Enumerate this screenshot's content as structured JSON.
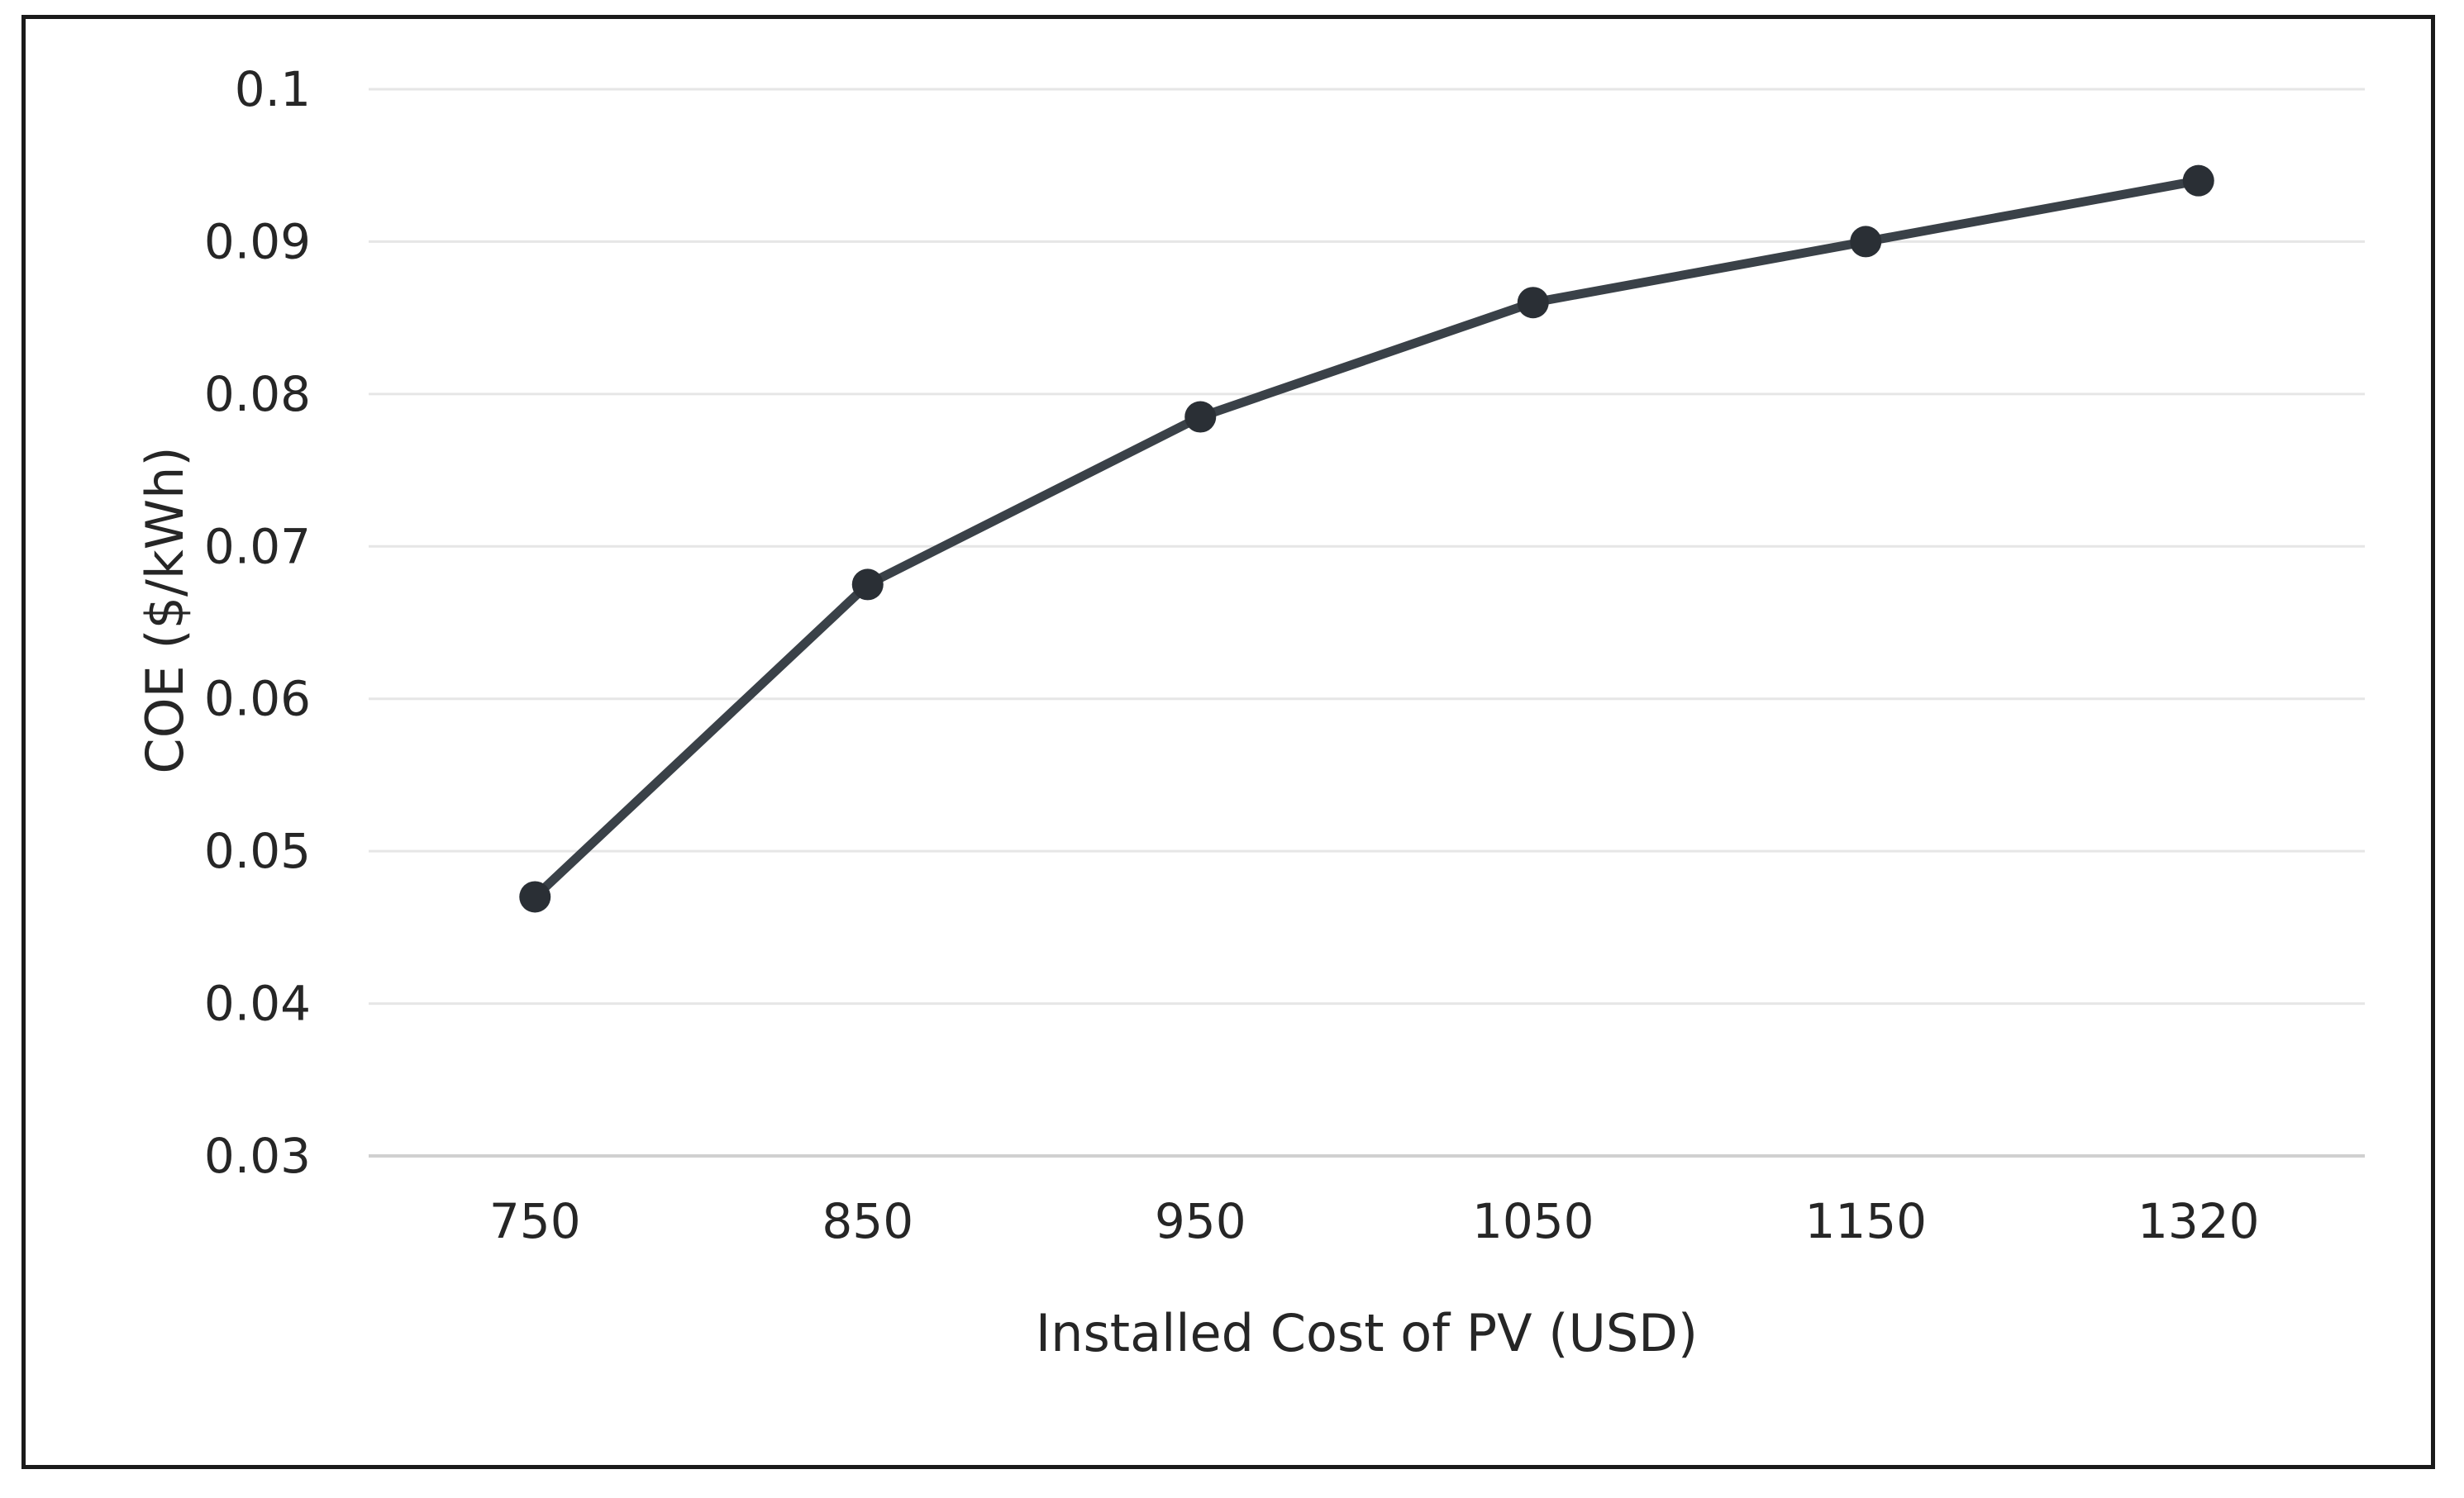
{
  "chart_data": {
    "type": "line",
    "title": "",
    "xlabel": "Installed Cost of PV (USD)",
    "ylabel": "COE ($/kWh)",
    "categories": [
      "750",
      "850",
      "950",
      "1050",
      "1150",
      "1320"
    ],
    "series": [
      {
        "values": [
          0.047,
          0.0675,
          0.0785,
          0.086,
          0.09,
          0.094
        ]
      }
    ],
    "ylim": [
      0.03,
      0.1
    ],
    "yticks": [
      "0.03",
      "0.04",
      "0.05",
      "0.06",
      "0.07",
      "0.08",
      "0.09",
      "0.1"
    ],
    "grid": true,
    "legend": "none",
    "colors": {
      "line": "#3a4148",
      "marker": "#2a2f35",
      "grid": "#e6e6e6",
      "axis": "#d0d0d0",
      "text": "#262626",
      "frame": "#1a1a1a"
    }
  }
}
